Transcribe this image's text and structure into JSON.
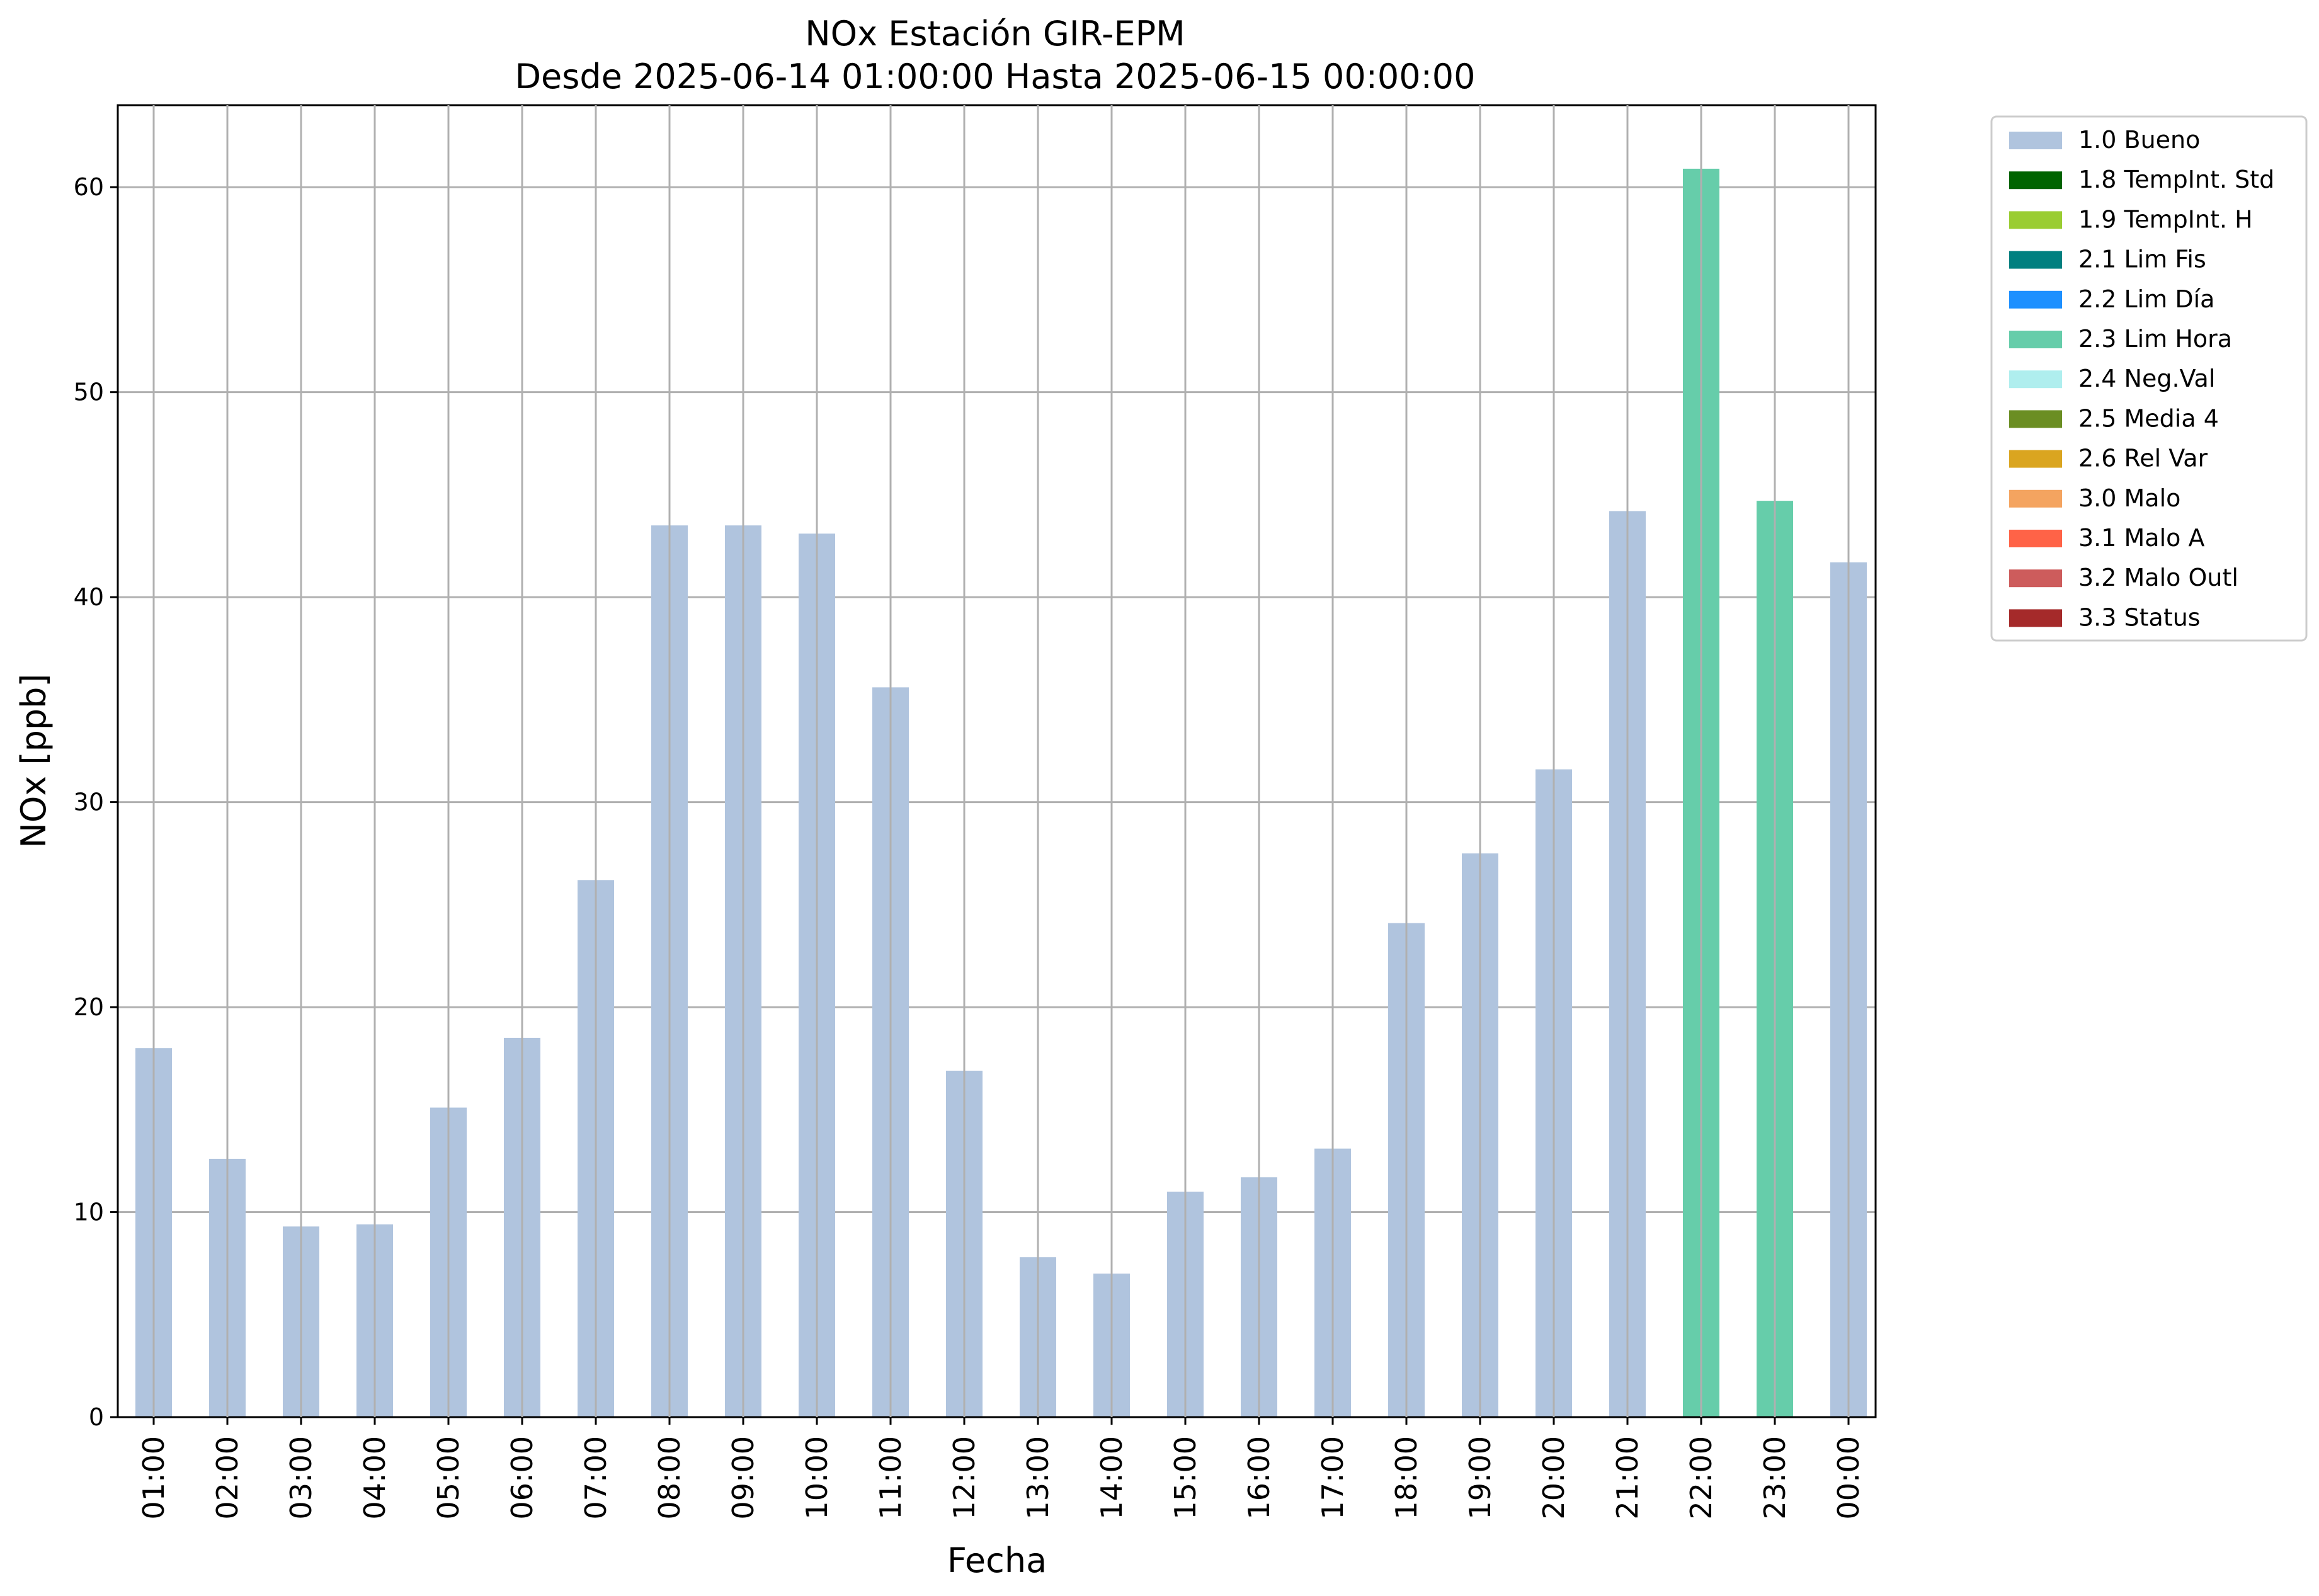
{
  "chart_data": {
    "type": "bar",
    "title": "NOx Estación GIR-EPM",
    "subtitle": "Desde 2025-06-14 01:00:00 Hasta 2025-06-15 00:00:00",
    "xlabel": "Fecha",
    "ylabel": "NOx [ppb]",
    "ylim": [
      0,
      64
    ],
    "yticks": [
      0,
      10,
      20,
      30,
      40,
      50,
      60
    ],
    "grid": true,
    "legend_position": "outside-top-right",
    "categories": [
      "01:00",
      "02:00",
      "03:00",
      "04:00",
      "05:00",
      "06:00",
      "07:00",
      "08:00",
      "09:00",
      "10:00",
      "11:00",
      "12:00",
      "13:00",
      "14:00",
      "15:00",
      "16:00",
      "17:00",
      "18:00",
      "19:00",
      "20:00",
      "21:00",
      "22:00",
      "23:00",
      "00:00"
    ],
    "values": [
      18.0,
      12.6,
      9.3,
      9.4,
      15.1,
      18.5,
      26.2,
      43.5,
      43.5,
      43.1,
      35.6,
      16.9,
      7.8,
      7.0,
      11.0,
      11.7,
      13.1,
      24.1,
      27.5,
      31.6,
      44.2,
      60.9,
      44.7,
      41.7
    ],
    "flags": [
      "1.0 Bueno",
      "1.0 Bueno",
      "1.0 Bueno",
      "1.0 Bueno",
      "1.0 Bueno",
      "1.0 Bueno",
      "1.0 Bueno",
      "1.0 Bueno",
      "1.0 Bueno",
      "1.0 Bueno",
      "1.0 Bueno",
      "1.0 Bueno",
      "1.0 Bueno",
      "1.0 Bueno",
      "1.0 Bueno",
      "1.0 Bueno",
      "1.0 Bueno",
      "1.0 Bueno",
      "1.0 Bueno",
      "1.0 Bueno",
      "1.0 Bueno",
      "2.3 Lim Hora",
      "2.3 Lim Hora",
      "1.0 Bueno"
    ],
    "legend": [
      {
        "label": "1.0 Bueno",
        "color": "#b0c4de"
      },
      {
        "label": "1.8 TempInt. Std",
        "color": "#006400"
      },
      {
        "label": "1.9 TempInt. H",
        "color": "#9acd32"
      },
      {
        "label": "2.1 Lim Fis",
        "color": "#008080"
      },
      {
        "label": "2.2 Lim Día",
        "color": "#1e90ff"
      },
      {
        "label": "2.3 Lim Hora",
        "color": "#66cdaa"
      },
      {
        "label": "2.4 Neg.Val",
        "color": "#afeeee"
      },
      {
        "label": "2.5 Media 4",
        "color": "#6b8e23"
      },
      {
        "label": "2.6 Rel Var",
        "color": "#daa520"
      },
      {
        "label": "3.0 Malo",
        "color": "#f4a460"
      },
      {
        "label": "3.1 Malo A",
        "color": "#ff6347"
      },
      {
        "label": "3.2 Malo Outl",
        "color": "#cd5c5c"
      },
      {
        "label": "3.3 Status",
        "color": "#a52a2a"
      }
    ]
  }
}
